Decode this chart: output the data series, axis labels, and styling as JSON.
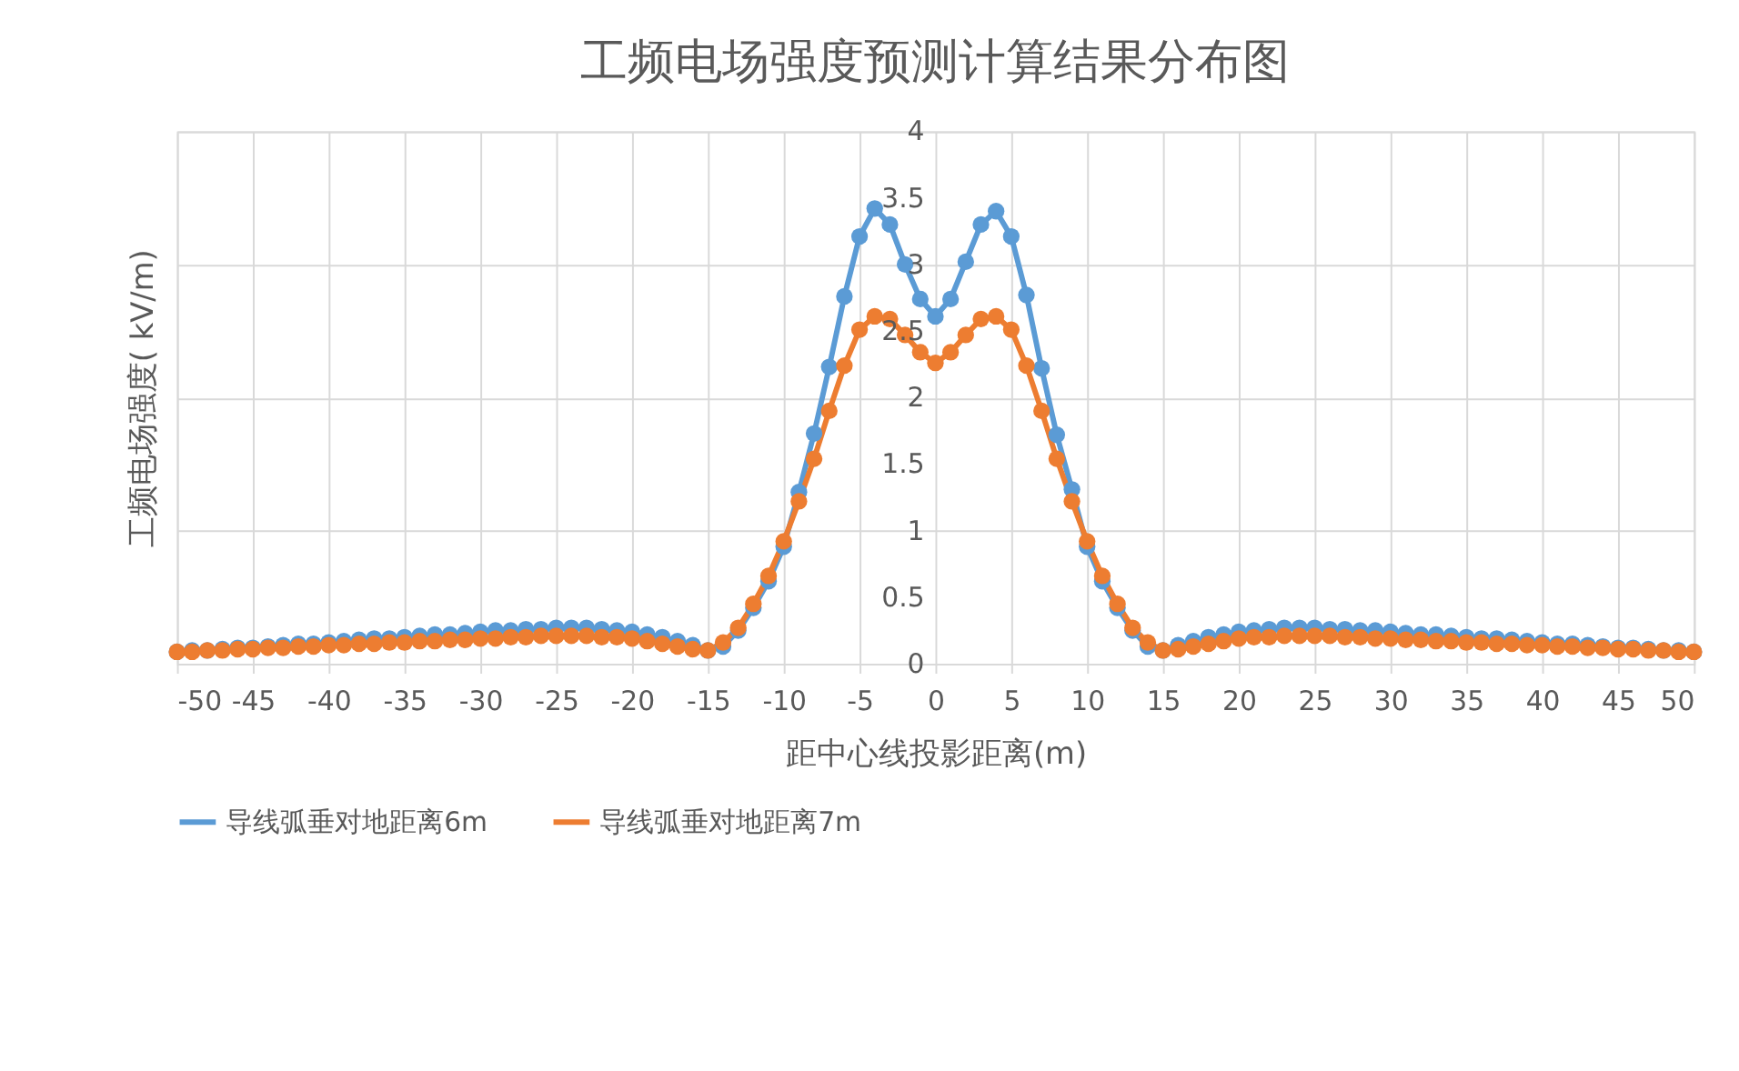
{
  "chart_data": {
    "type": "line",
    "title": "工频电场强度预测计算结果分布图",
    "xlabel": "距中心线投影距离(m)",
    "ylabel": "工频电场强度( kV/m)",
    "x": [
      -50,
      -49,
      -48,
      -47,
      -46,
      -45,
      -44,
      -43,
      -42,
      -41,
      -40,
      -39,
      -38,
      -37,
      -36,
      -35,
      -34,
      -33,
      -32,
      -31,
      -30,
      -29,
      -28,
      -27,
      -26,
      -25,
      -24,
      -23,
      -22,
      -21,
      -20,
      -19,
      -18,
      -17,
      -16,
      -15,
      -14,
      -13,
      -12,
      -11,
      -10,
      -9,
      -8,
      -7,
      -6,
      -5,
      -4,
      -3,
      -2,
      -1,
      0,
      1,
      2,
      3,
      4,
      5,
      6,
      7,
      8,
      9,
      10,
      11,
      12,
      13,
      14,
      15,
      16,
      17,
      18,
      19,
      20,
      21,
      22,
      23,
      24,
      25,
      26,
      27,
      28,
      29,
      30,
      31,
      32,
      33,
      34,
      35,
      36,
      37,
      38,
      39,
      40,
      41,
      42,
      43,
      44,
      45,
      46,
      47,
      48,
      49,
      50
    ],
    "series": [
      {
        "name": "导线弧垂对地距离6m",
        "color": "#5b9bd5",
        "values": [
          0.09,
          0.1,
          0.1,
          0.11,
          0.12,
          0.12,
          0.13,
          0.14,
          0.15,
          0.15,
          0.16,
          0.17,
          0.18,
          0.19,
          0.19,
          0.2,
          0.21,
          0.22,
          0.22,
          0.23,
          0.24,
          0.25,
          0.25,
          0.26,
          0.26,
          0.27,
          0.27,
          0.27,
          0.26,
          0.25,
          0.24,
          0.22,
          0.2,
          0.17,
          0.14,
          0.1,
          0.13,
          0.25,
          0.42,
          0.62,
          0.88,
          1.29,
          1.73,
          2.23,
          2.76,
          3.21,
          3.42,
          3.3,
          3.0,
          2.74,
          2.61,
          2.74,
          3.02,
          3.3,
          3.4,
          3.21,
          2.77,
          2.22,
          1.72,
          1.31,
          0.88,
          0.62,
          0.42,
          0.25,
          0.13,
          0.1,
          0.14,
          0.17,
          0.2,
          0.22,
          0.24,
          0.25,
          0.26,
          0.27,
          0.27,
          0.27,
          0.26,
          0.26,
          0.25,
          0.25,
          0.24,
          0.23,
          0.22,
          0.22,
          0.21,
          0.2,
          0.19,
          0.19,
          0.18,
          0.17,
          0.16,
          0.15,
          0.15,
          0.14,
          0.13,
          0.12,
          0.12,
          0.11,
          0.1,
          0.1,
          0.09
        ]
      },
      {
        "name": "导线弧垂对地距离7m",
        "color": "#ed7d31",
        "values": [
          0.09,
          0.09,
          0.1,
          0.1,
          0.11,
          0.11,
          0.12,
          0.12,
          0.13,
          0.13,
          0.14,
          0.14,
          0.15,
          0.15,
          0.16,
          0.16,
          0.17,
          0.17,
          0.18,
          0.18,
          0.19,
          0.19,
          0.2,
          0.2,
          0.21,
          0.21,
          0.21,
          0.21,
          0.2,
          0.2,
          0.19,
          0.17,
          0.15,
          0.13,
          0.11,
          0.1,
          0.16,
          0.27,
          0.45,
          0.66,
          0.92,
          1.22,
          1.54,
          1.9,
          2.24,
          2.51,
          2.61,
          2.59,
          2.47,
          2.34,
          2.26,
          2.34,
          2.47,
          2.59,
          2.61,
          2.51,
          2.24,
          1.9,
          1.54,
          1.22,
          0.92,
          0.66,
          0.45,
          0.27,
          0.16,
          0.1,
          0.11,
          0.13,
          0.15,
          0.17,
          0.19,
          0.2,
          0.2,
          0.21,
          0.21,
          0.21,
          0.21,
          0.2,
          0.2,
          0.19,
          0.19,
          0.18,
          0.18,
          0.17,
          0.17,
          0.16,
          0.16,
          0.15,
          0.15,
          0.14,
          0.14,
          0.13,
          0.13,
          0.12,
          0.12,
          0.11,
          0.11,
          0.1,
          0.1,
          0.09,
          0.09
        ]
      }
    ],
    "xlim": [
      -50,
      50
    ],
    "xticks": [
      -50,
      -45,
      -40,
      -35,
      -30,
      -25,
      -20,
      -15,
      -10,
      -5,
      0,
      5,
      10,
      15,
      20,
      25,
      30,
      35,
      40,
      45,
      50
    ],
    "ylim": [
      0,
      4
    ],
    "yticks": [
      0,
      0.5,
      1,
      1.5,
      2,
      2.5,
      3,
      3.5,
      4
    ],
    "grid": true,
    "legend": "bottom",
    "marker": "circle",
    "line_style": "solid"
  }
}
